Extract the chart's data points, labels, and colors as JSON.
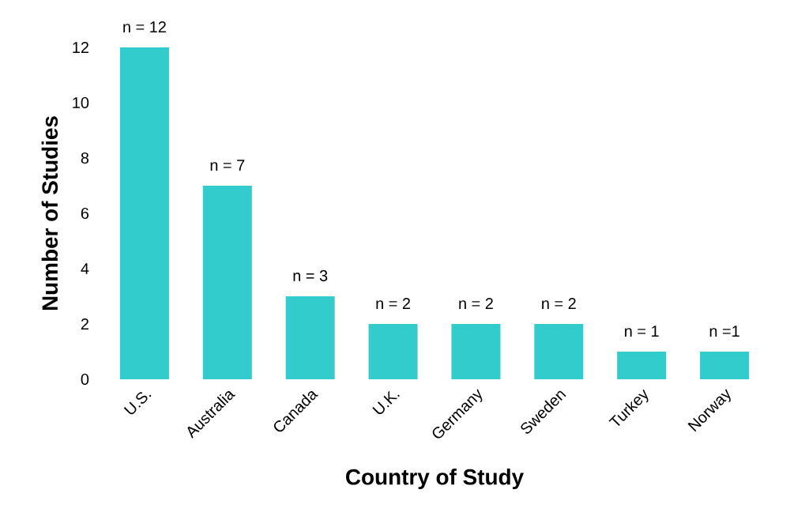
{
  "chart_data": {
    "type": "bar",
    "xlabel": "Country of Study",
    "ylabel": "Number of Studies",
    "categories": [
      "U.S.",
      "Australia",
      "Canada",
      "U.K.",
      "Germany",
      "Sweden",
      "Turkey",
      "Norway"
    ],
    "values": [
      12,
      7,
      3,
      2,
      2,
      2,
      1,
      1
    ],
    "value_labels": [
      "n = 12",
      "n = 7",
      "n = 3",
      "n = 2",
      "n = 2",
      "n = 2",
      "n = 1",
      "n =1"
    ],
    "color": "#33cccc",
    "ylim": [
      0,
      12
    ],
    "yticks": [
      0,
      2,
      4,
      6,
      8,
      10,
      12
    ]
  }
}
